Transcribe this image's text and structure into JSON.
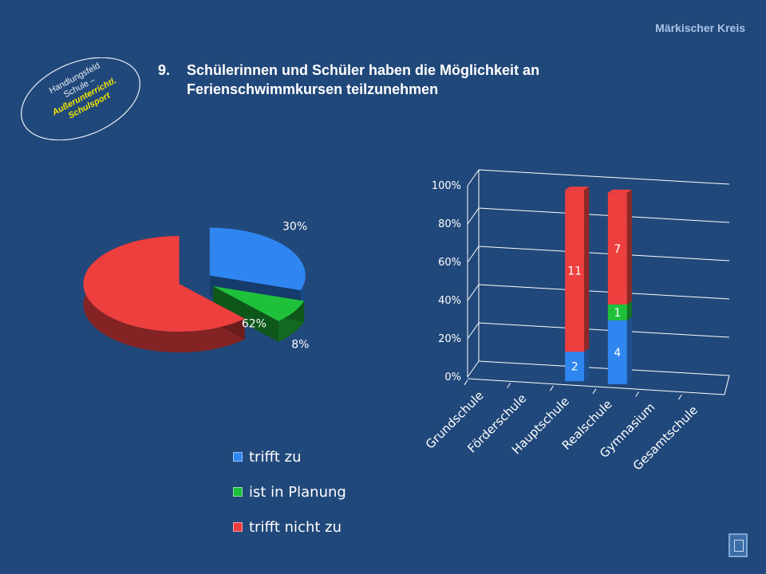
{
  "brand": "Märkischer Kreis",
  "badge": {
    "line1": "Handlungsfeld",
    "line2": "Schule –",
    "line3": "Außerunterrichtl.",
    "line4": "Schulsport"
  },
  "title": {
    "number": "9.",
    "text": "Schülerinnen und Schüler haben die Möglichkeit an Ferienschwimmkursen teilzunehmen"
  },
  "colors": {
    "trifft_zu": "#2f86f0",
    "ist_in_planung": "#1fc13b",
    "trifft_nicht_zu": "#ee3f3f",
    "background": "#21487a"
  },
  "legend": [
    {
      "label": "trifft zu",
      "color": "#2f86f0"
    },
    {
      "label": "ist in Planung",
      "color": "#1fc13b"
    },
    {
      "label": "trifft nicht zu",
      "color": "#ee3f3f"
    }
  ],
  "chart_data": [
    {
      "type": "pie",
      "categories": [
        "trifft zu",
        "ist in Planung",
        "trifft nicht zu"
      ],
      "values": [
        30,
        8,
        62
      ],
      "labels": [
        "30%",
        "8%",
        "62%"
      ],
      "style": "3d-exploded",
      "legend_position": "bottom"
    },
    {
      "type": "bar",
      "stacked": "percent",
      "style": "3d",
      "categories": [
        "Grundschule",
        "Förderschule",
        "Hauptschule",
        "Realschule",
        "Gymnasium",
        "Gesamtschule"
      ],
      "series": [
        {
          "name": "trifft zu",
          "values": [
            null,
            null,
            2,
            4,
            null,
            null
          ]
        },
        {
          "name": "ist in Planung",
          "values": [
            null,
            null,
            0,
            1,
            null,
            null
          ]
        },
        {
          "name": "trifft nicht zu",
          "values": [
            null,
            null,
            11,
            7,
            null,
            null
          ]
        }
      ],
      "yticks": [
        "0%",
        "20%",
        "40%",
        "60%",
        "80%",
        "100%"
      ],
      "ylim": [
        0,
        100
      ],
      "grid": true
    }
  ]
}
